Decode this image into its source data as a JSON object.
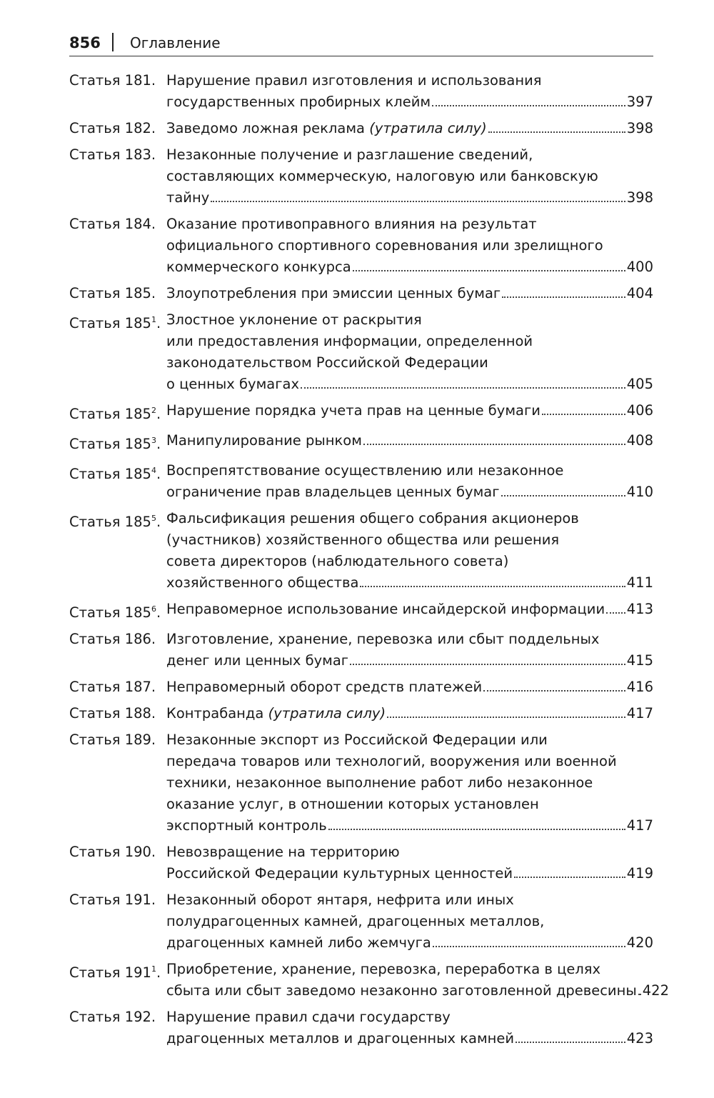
{
  "header": {
    "page_number": "856",
    "title": "Оглавление"
  },
  "entries": [
    {
      "label": "Статья 181.",
      "sup": "",
      "lines": [
        "Нарушение правил изготовления и использования"
      ],
      "last": "государственных пробирных клейм",
      "last_italic": "",
      "page": "397"
    },
    {
      "label": "Статья 182.",
      "sup": "",
      "lines": [],
      "last": "Заведомо ложная реклама ",
      "last_italic": "(утратила силу)",
      "page": "398"
    },
    {
      "label": "Статья 183.",
      "sup": "",
      "lines": [
        "Незаконные получение и разглашение сведений,",
        "составляющих коммерческую, налоговую или банковскую"
      ],
      "last": "тайну",
      "last_italic": "",
      "page": "398"
    },
    {
      "label": "Статья 184.",
      "sup": "",
      "lines": [
        "Оказание противоправного влияния на результат",
        "официального спортивного соревнования или зрелищного"
      ],
      "last": "коммерческого конкурса",
      "last_italic": "",
      "page": "400"
    },
    {
      "label": "Статья 185.",
      "sup": "",
      "lines": [],
      "last": "Злоупотребления при эмиссии ценных бумаг",
      "last_italic": "",
      "page": "404"
    },
    {
      "label": "Статья 185",
      "sup": "1",
      "lines": [
        "Злостное уклонение от раскрытия",
        "или предоставления информации, определенной",
        "законодательством Российской Федерации"
      ],
      "last": "о ценных бумагах",
      "last_italic": "",
      "page": "405"
    },
    {
      "label": "Статья 185",
      "sup": "2",
      "lines": [],
      "last": "Нарушение порядка учета прав на ценные бумаги",
      "last_italic": "",
      "page": "406"
    },
    {
      "label": "Статья 185",
      "sup": "3",
      "lines": [],
      "last": "Манипулирование рынком",
      "last_italic": "",
      "page": "408"
    },
    {
      "label": "Статья 185",
      "sup": "4",
      "lines": [
        "Воспрепятствование осуществлению или незаконное"
      ],
      "last": "ограничение прав владельцев ценных бумаг",
      "last_italic": "",
      "page": "410"
    },
    {
      "label": "Статья 185",
      "sup": "5",
      "lines": [
        "Фальсификация решения общего собрания акционеров",
        "(участников) хозяйственного общества или решения",
        "совета директоров (наблюдательного совета)"
      ],
      "last": "хозяйственного общества",
      "last_italic": "",
      "page": "411"
    },
    {
      "label": "Статья 185",
      "sup": "6",
      "lines": [],
      "last": "Неправомерное использование инсайдерской информации",
      "last_italic": "",
      "page": "413"
    },
    {
      "label": "Статья 186.",
      "sup": "",
      "lines": [
        "Изготовление, хранение, перевозка или сбыт поддельных"
      ],
      "last": "денег или ценных бумаг",
      "last_italic": "",
      "page": "415"
    },
    {
      "label": "Статья 187.",
      "sup": "",
      "lines": [],
      "last": "Неправомерный оборот средств платежей",
      "last_italic": "",
      "page": "416"
    },
    {
      "label": "Статья 188.",
      "sup": "",
      "lines": [],
      "last": "Контрабанда ",
      "last_italic": "(утратила силу)",
      "page": "417"
    },
    {
      "label": "Статья 189.",
      "sup": "",
      "lines": [
        "Незаконные экспорт из Российской Федерации или",
        "передача товаров или технологий, вооружения или военной",
        "техники, незаконное выполнение работ либо незаконное",
        "оказание услуг, в отношении которых установлен"
      ],
      "last": "экспортный контроль",
      "last_italic": "",
      "page": "417"
    },
    {
      "label": "Статья 190.",
      "sup": "",
      "lines": [
        "Невозвращение на территорию"
      ],
      "last": "Российской Федерации культурных ценностей",
      "last_italic": "",
      "page": "419"
    },
    {
      "label": "Статья 191.",
      "sup": "",
      "lines": [
        "Незаконный оборот янтаря, нефрита или иных",
        "полудрагоценных камней, драгоценных металлов,"
      ],
      "last": "драгоценных камней либо жемчуга",
      "last_italic": "",
      "page": "420"
    },
    {
      "label": "Статья 191",
      "sup": "1",
      "lines": [
        "Приобретение, хранение, перевозка, переработка в целях"
      ],
      "last": "сбыта или сбыт заведомо незаконно заготовленной древесины",
      "last_italic": "",
      "page": "422"
    },
    {
      "label": "Статья 192.",
      "sup": "",
      "lines": [
        "Нарушение правил сдачи государству"
      ],
      "last": "драгоценных металлов и драгоценных камней",
      "last_italic": "",
      "page": "423"
    }
  ]
}
